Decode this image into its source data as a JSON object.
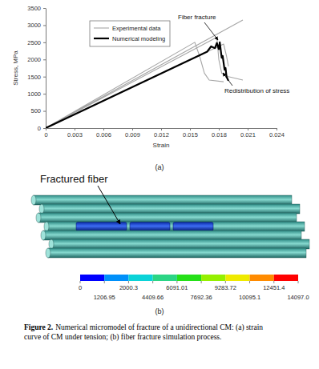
{
  "chart_data": {
    "type": "line",
    "xlabel": "Strain",
    "ylabel": "Stress, MPa",
    "xlim": [
      0,
      0.024
    ],
    "ylim": [
      0,
      3500
    ],
    "xticks": [
      0,
      0.003,
      0.006,
      0.009,
      0.012,
      0.015,
      0.018,
      0.021,
      0.024
    ],
    "yticks": [
      0,
      500,
      1000,
      1500,
      2000,
      2500,
      3000,
      3500
    ],
    "grid": false,
    "legend": "upper left",
    "annotations": [
      "Fiber fracture",
      "Redistribution of stress"
    ],
    "series": [
      {
        "name": "Experimental data",
        "color": "#a6a6a6",
        "line_style": "solid",
        "x": [
          0,
          0.0205,
          null,
          0,
          0.0155,
          0.016,
          0.0165,
          0.017,
          0.0185,
          null,
          0,
          0.0178,
          0.018,
          0.0183,
          0.019,
          0.0205,
          null,
          0,
          0.0185,
          0.0188,
          0.019
        ],
        "values": [
          0,
          3150,
          null,
          0,
          2500,
          2100,
          1600,
          1400,
          1350,
          null,
          0,
          2650,
          2000,
          1600,
          1500,
          1400,
          null,
          0,
          2450,
          2100,
          1800
        ]
      },
      {
        "name": "Numerical modeling",
        "color": "#000000",
        "line_style": "solid",
        "x": [
          0,
          0.0168,
          0.0172,
          0.0176,
          0.0178,
          0.018,
          0.0181,
          0.0183,
          0.0184,
          0.0186,
          0.0187,
          0.0188,
          0.019
        ],
        "values": [
          0,
          2230,
          2380,
          2330,
          2480,
          2300,
          2500,
          2050,
          2100,
          1700,
          1750,
          1500,
          1380
        ]
      }
    ]
  },
  "panels": [
    "(a)",
    "(b)"
  ],
  "panel_b": {
    "annotation": "Fractured fiber",
    "color_bar": {
      "ticks": [
        0,
        1206.95,
        2000.3,
        4409.66,
        6091.01,
        7692.36,
        9283.72,
        10095.1,
        12451.4,
        {
          "value": 14097,
          "label": "14097.0"
        }
      ]
    }
  },
  "caption": {
    "label": "Figure 2.",
    "lines": [
      "Numerical micromodel of fracture of a unidirectional CM: (a) strain",
      "curve of CM under tension; (b) fiber fracture simulation process."
    ]
  }
}
